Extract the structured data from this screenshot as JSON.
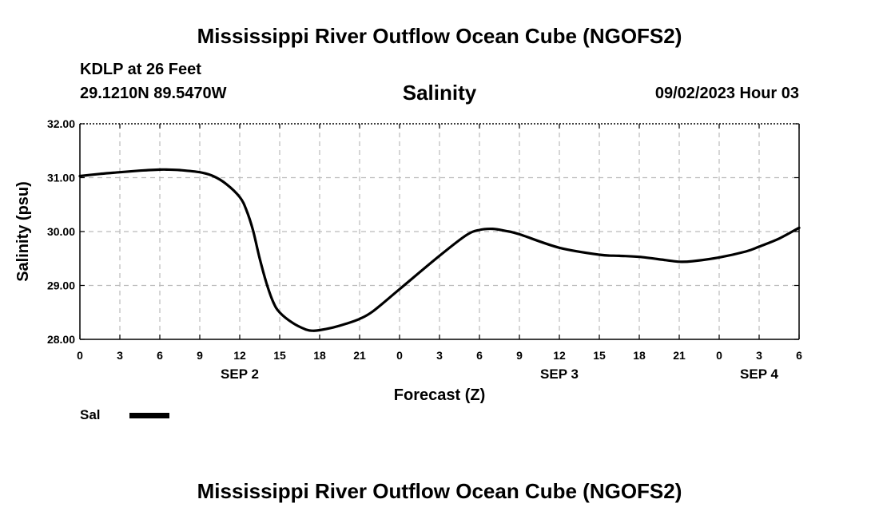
{
  "header": {
    "title": "Mississippi River Outflow Ocean Cube (NGOFS2)",
    "station": "KDLP at 26 Feet",
    "coordinates": "29.1210N  89.5470W",
    "chart_title": "Salinity",
    "datetime": "09/02/2023 Hour 03"
  },
  "footer": {
    "title": "Mississippi River Outflow Ocean Cube (NGOFS2)"
  },
  "legend": {
    "label": "Sal",
    "color": "#000000"
  },
  "chart_data": {
    "type": "line",
    "title": "Salinity",
    "xlabel": "Forecast (Z)",
    "ylabel": "Salinity (psu)",
    "ylim": [
      28.0,
      32.0
    ],
    "xlim": [
      0,
      54
    ],
    "grid": true,
    "x_tick_hours": [
      0,
      3,
      6,
      9,
      12,
      15,
      18,
      21,
      24,
      27,
      30,
      33,
      36,
      39,
      42,
      45,
      48,
      51,
      54
    ],
    "x_tick_labels": [
      "0",
      "3",
      "6",
      "9",
      "12",
      "15",
      "18",
      "21",
      "0",
      "3",
      "6",
      "9",
      "12",
      "15",
      "18",
      "21",
      "0",
      "3",
      "6"
    ],
    "y_ticks": [
      28.0,
      29.0,
      30.0,
      31.0,
      32.0
    ],
    "y_tick_labels": [
      "28.00",
      "29.00",
      "30.00",
      "31.00",
      "32.00"
    ],
    "date_labels": [
      {
        "hour": 12,
        "label": "SEP 2"
      },
      {
        "hour": 36,
        "label": "SEP 3"
      },
      {
        "hour": 51,
        "label": "SEP 4"
      }
    ],
    "series": [
      {
        "name": "Sal",
        "color": "#000000",
        "x": [
          0,
          1.5,
          3,
          4.5,
          6,
          6.5,
          7.5,
          9,
          10,
          11,
          12,
          12.5,
          13,
          13.5,
          14,
          14.5,
          15,
          16,
          17,
          17.5,
          18,
          19,
          20,
          21,
          22,
          24,
          27,
          29,
          30,
          31,
          32,
          33,
          36,
          39,
          40.5,
          42,
          44,
          45,
          46,
          48,
          50,
          51,
          52.5,
          54
        ],
        "values": [
          31.03,
          31.07,
          31.1,
          31.13,
          31.15,
          31.15,
          31.14,
          31.1,
          31.03,
          30.88,
          30.64,
          30.4,
          30.02,
          29.5,
          29.05,
          28.7,
          28.5,
          28.3,
          28.18,
          28.16,
          28.17,
          28.22,
          28.29,
          28.38,
          28.52,
          28.93,
          29.55,
          29.93,
          30.03,
          30.05,
          30.01,
          29.95,
          29.7,
          29.57,
          29.55,
          29.53,
          29.47,
          29.44,
          29.45,
          29.52,
          29.63,
          29.72,
          29.87,
          30.07
        ]
      }
    ]
  }
}
